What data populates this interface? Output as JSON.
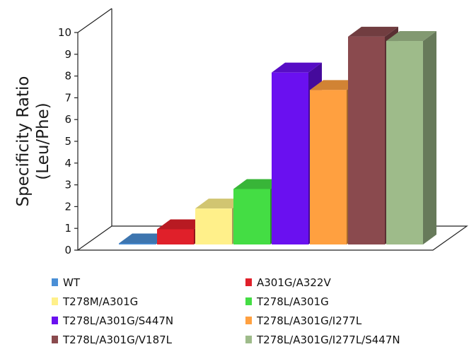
{
  "chart_data": {
    "type": "bar",
    "three_d": true,
    "ylabel": [
      "Specificity Ratio",
      "(Leu/Phe)"
    ],
    "xlabel": "",
    "ylim": [
      0,
      10
    ],
    "yticks": [
      0,
      1,
      2,
      3,
      4,
      5,
      6,
      7,
      8,
      9,
      10
    ],
    "grid": false,
    "legend_position": "bottom",
    "categories": [
      "WT",
      "A301G/A322V",
      "T278M/A301G",
      "T278L/A301G",
      "T278L/A301G/S447N",
      "T278L/A301G/I277L",
      "T278L/A301G/V187L",
      "T278L/A301G/I277L/S447N"
    ],
    "values": [
      0.05,
      0.7,
      1.65,
      2.55,
      7.9,
      7.1,
      9.55,
      9.35
    ],
    "colors": [
      "#4a8fd6",
      "#e0202a",
      "#fff08a",
      "#44dd44",
      "#6a10f0",
      "#ffa040",
      "#8a4a4e",
      "#9ebb8a"
    ]
  }
}
